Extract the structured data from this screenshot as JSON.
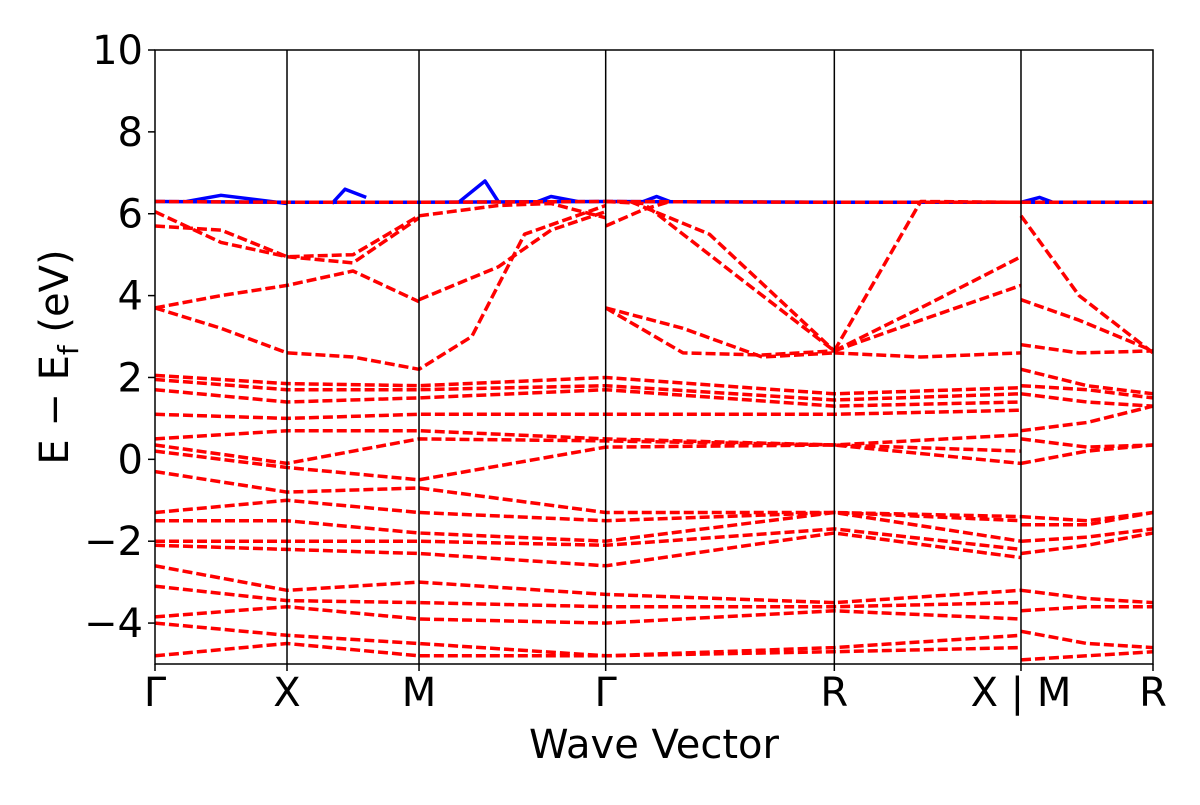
{
  "chart_data": {
    "type": "line",
    "title": "",
    "xlabel": "Wave Vector",
    "ylabel_main": "E − E",
    "ylabel_sub": "f",
    "ylabel_unit": " (eV)",
    "ylim": [
      -5,
      10
    ],
    "yticks": [
      -4,
      -2,
      0,
      2,
      4,
      6,
      8,
      10
    ],
    "ytick_labels": [
      "−4",
      "−2",
      "0",
      "2",
      "4",
      "6",
      "8",
      "10"
    ],
    "grid": false,
    "legend": "none",
    "kpath": [
      {
        "label": "Γ",
        "x": 0.0
      },
      {
        "label": "X",
        "x": 0.5
      },
      {
        "label": "M",
        "x": 1.0
      },
      {
        "label": "Γ",
        "x": 1.707
      },
      {
        "label": "R",
        "x": 2.573
      },
      {
        "label": "X | M",
        "x": 3.28
      },
      {
        "label": "R",
        "x": 3.78
      }
    ],
    "xlim": [
      0.0,
      3.78
    ],
    "break_at": 3.28,
    "series": [
      {
        "style": "solid",
        "color": "#0000ff",
        "bands": [
          {
            "x": [
              0,
              0.5,
              1.0,
              1.707,
              2.573,
              3.28
            ],
            "y": [
              6.3,
              6.28,
              6.28,
              6.3,
              6.28,
              6.28
            ]
          },
          {
            "x": [
              0.12,
              0.25,
              0.5
            ],
            "y": [
              6.3,
              6.45,
              6.25
            ]
          },
          {
            "x": [
              0.67,
              0.72,
              0.8
            ],
            "y": [
              6.25,
              6.6,
              6.4
            ]
          },
          {
            "x": [
              1.15,
              1.25,
              1.3
            ],
            "y": [
              6.28,
              6.8,
              6.3
            ]
          },
          {
            "x": [
              1.45,
              1.5,
              1.6
            ],
            "y": [
              6.3,
              6.42,
              6.3
            ]
          },
          {
            "x": [
              1.85,
              1.9,
              1.95
            ],
            "y": [
              6.3,
              6.42,
              6.3
            ]
          },
          {
            "x": [
              3.28,
              3.35,
              3.4
            ],
            "y": [
              6.28,
              6.4,
              6.28
            ]
          },
          {
            "x": [
              3.28,
              3.53,
              3.78
            ],
            "y": [
              6.28,
              6.28,
              6.28
            ]
          }
        ]
      },
      {
        "style": "dashed",
        "color": "#ff0000",
        "bands": [
          {
            "x": [
              0,
              0.5,
              1.0,
              1.707,
              2.573,
              3.28
            ],
            "y": [
              6.3,
              6.28,
              6.28,
              6.3,
              6.28,
              6.28
            ]
          },
          {
            "x": [
              3.28,
              3.53,
              3.78
            ],
            "y": [
              6.28,
              6.28,
              6.28
            ]
          },
          {
            "x": [
              0,
              0.25,
              0.5,
              0.75,
              1.0
            ],
            "y": [
              6.05,
              5.3,
              4.95,
              4.8,
              5.9
            ]
          },
          {
            "x": [
              0,
              0.25,
              0.5,
              0.75,
              1.0
            ],
            "y": [
              5.7,
              5.6,
              4.95,
              5.0,
              5.95
            ]
          },
          {
            "x": [
              1.0,
              1.3,
              1.5,
              1.707
            ],
            "y": [
              5.95,
              6.2,
              6.25,
              5.9
            ]
          },
          {
            "x": [
              1.0,
              1.3,
              1.5,
              1.707
            ],
            "y": [
              3.9,
              4.7,
              5.6,
              6.05
            ]
          },
          {
            "x": [
              1.707,
              1.85,
              1.95
            ],
            "y": [
              5.7,
              6.1,
              6.3
            ]
          },
          {
            "x": [
              0,
              0.25,
              0.5,
              0.75,
              1.0
            ],
            "y": [
              3.7,
              4.0,
              4.25,
              4.6,
              3.85
            ]
          },
          {
            "x": [
              0,
              0.25,
              0.5,
              0.75,
              1.0,
              1.2,
              1.4,
              1.707
            ],
            "y": [
              3.7,
              3.2,
              2.6,
              2.5,
              2.2,
              3.0,
              5.5,
              6.2
            ]
          },
          {
            "x": [
              1.707,
              2.0,
              2.3,
              2.573
            ],
            "y": [
              3.7,
              3.2,
              2.5,
              2.6
            ]
          },
          {
            "x": [
              1.707,
              2.0,
              2.3,
              2.573
            ],
            "y": [
              3.7,
              2.6,
              2.55,
              2.65
            ]
          },
          {
            "x": [
              1.8,
              2.1,
              2.573
            ],
            "y": [
              6.3,
              5.5,
              2.65
            ]
          },
          {
            "x": [
              1.707,
              1.85,
              2.2,
              2.573
            ],
            "y": [
              6.3,
              6.25,
              4.5,
              2.65
            ]
          },
          {
            "x": [
              2.573,
              2.9,
              3.28
            ],
            "y": [
              2.65,
              6.3,
              6.28
            ]
          },
          {
            "x": [
              2.573,
              2.9,
              3.28
            ],
            "y": [
              2.65,
              3.7,
              4.95
            ]
          },
          {
            "x": [
              2.573,
              2.9,
              3.28
            ],
            "y": [
              2.65,
              3.4,
              4.25
            ]
          },
          {
            "x": [
              2.573,
              2.9,
              3.28
            ],
            "y": [
              2.6,
              2.5,
              2.6
            ]
          },
          {
            "x": [
              3.28,
              3.5,
              3.78
            ],
            "y": [
              5.95,
              4.0,
              2.6
            ]
          },
          {
            "x": [
              3.28,
              3.5,
              3.78
            ],
            "y": [
              3.9,
              3.4,
              2.65
            ]
          },
          {
            "x": [
              3.28,
              3.5,
              3.78
            ],
            "y": [
              2.8,
              2.6,
              2.65
            ]
          },
          {
            "x": [
              0,
              0.5,
              1.0,
              1.707,
              2.573,
              3.28
            ],
            "y": [
              2.05,
              1.85,
              1.8,
              2.0,
              1.6,
              1.75
            ]
          },
          {
            "x": [
              0,
              0.5,
              1.0,
              1.707,
              2.573,
              3.28
            ],
            "y": [
              1.95,
              1.7,
              1.7,
              1.8,
              1.45,
              1.6
            ]
          },
          {
            "x": [
              0,
              0.5,
              1.0,
              1.707,
              2.573,
              3.28
            ],
            "y": [
              1.7,
              1.4,
              1.5,
              1.7,
              1.3,
              1.4
            ]
          },
          {
            "x": [
              0,
              0.5,
              1.0,
              1.707,
              2.573,
              3.28
            ],
            "y": [
              1.1,
              1.0,
              1.1,
              1.1,
              1.1,
              1.2
            ]
          },
          {
            "x": [
              0,
              0.5,
              1.0,
              1.707,
              2.573,
              3.28
            ],
            "y": [
              0.5,
              0.7,
              0.7,
              0.5,
              0.35,
              0.6
            ]
          },
          {
            "x": [
              0,
              0.5,
              1.0,
              1.707,
              2.573,
              3.28
            ],
            "y": [
              0.35,
              -0.1,
              0.5,
              0.45,
              0.35,
              0.2
            ]
          },
          {
            "x": [
              0,
              0.5,
              1.0,
              1.707,
              2.573,
              3.28
            ],
            "y": [
              0.2,
              -0.2,
              -0.5,
              0.3,
              0.35,
              -0.1
            ]
          },
          {
            "x": [
              0,
              0.5,
              1.0,
              1.707,
              2.573,
              3.28
            ],
            "y": [
              -0.3,
              -0.8,
              -0.7,
              -1.3,
              -1.3,
              -1.4
            ]
          },
          {
            "x": [
              0,
              0.5,
              1.0,
              1.707,
              2.573,
              3.28
            ],
            "y": [
              -1.3,
              -1.0,
              -1.3,
              -1.5,
              -1.3,
              -1.5
            ]
          },
          {
            "x": [
              0,
              0.5,
              1.0,
              1.707,
              2.573,
              3.28
            ],
            "y": [
              -1.5,
              -1.5,
              -1.8,
              -2.0,
              -1.3,
              -2.0
            ]
          },
          {
            "x": [
              0,
              0.5,
              1.0,
              1.707,
              2.573,
              3.28
            ],
            "y": [
              -2.0,
              -2.0,
              -2.0,
              -2.1,
              -1.7,
              -2.2
            ]
          },
          {
            "x": [
              0,
              0.5,
              1.0,
              1.707,
              2.573,
              3.28
            ],
            "y": [
              -2.1,
              -2.2,
              -2.3,
              -2.6,
              -1.8,
              -2.4
            ]
          },
          {
            "x": [
              0,
              0.5,
              1.0,
              1.707,
              2.573,
              3.28
            ],
            "y": [
              -2.6,
              -3.2,
              -3.0,
              -3.3,
              -3.5,
              -3.2
            ]
          },
          {
            "x": [
              0,
              0.5,
              1.0,
              1.707,
              2.573,
              3.28
            ],
            "y": [
              -3.1,
              -3.45,
              -3.5,
              -3.6,
              -3.6,
              -3.5
            ]
          },
          {
            "x": [
              0,
              0.5,
              1.0,
              1.707,
              2.573,
              3.28
            ],
            "y": [
              -3.85,
              -3.6,
              -3.9,
              -4.0,
              -3.7,
              -3.9
            ]
          },
          {
            "x": [
              0,
              0.5,
              1.0,
              1.707,
              2.573,
              3.28
            ],
            "y": [
              -4.0,
              -4.3,
              -4.5,
              -4.8,
              -4.6,
              -4.3
            ]
          },
          {
            "x": [
              0,
              0.5,
              1.0,
              1.707,
              2.573,
              3.28
            ],
            "y": [
              -4.8,
              -4.5,
              -4.8,
              -4.8,
              -4.7,
              -4.6
            ]
          },
          {
            "x": [
              3.28,
              3.53,
              3.78
            ],
            "y": [
              2.2,
              1.8,
              1.6
            ]
          },
          {
            "x": [
              3.28,
              3.53,
              3.78
            ],
            "y": [
              1.8,
              1.7,
              1.5
            ]
          },
          {
            "x": [
              3.28,
              3.53,
              3.78
            ],
            "y": [
              1.6,
              1.4,
              1.3
            ]
          },
          {
            "x": [
              3.28,
              3.53,
              3.78
            ],
            "y": [
              0.7,
              0.9,
              1.3
            ]
          },
          {
            "x": [
              3.28,
              3.53,
              3.78
            ],
            "y": [
              0.5,
              0.3,
              0.35
            ]
          },
          {
            "x": [
              3.28,
              3.53,
              3.78
            ],
            "y": [
              -0.1,
              0.2,
              0.35
            ]
          },
          {
            "x": [
              3.28,
              3.53,
              3.78
            ],
            "y": [
              -1.4,
              -1.5,
              -1.3
            ]
          },
          {
            "x": [
              3.28,
              3.53,
              3.78
            ],
            "y": [
              -1.6,
              -1.6,
              -1.3
            ]
          },
          {
            "x": [
              3.28,
              3.53,
              3.78
            ],
            "y": [
              -2.0,
              -1.9,
              -1.7
            ]
          },
          {
            "x": [
              3.28,
              3.53,
              3.78
            ],
            "y": [
              -2.3,
              -2.1,
              -1.8
            ]
          },
          {
            "x": [
              3.28,
              3.53,
              3.78
            ],
            "y": [
              -3.2,
              -3.4,
              -3.5
            ]
          },
          {
            "x": [
              3.28,
              3.53,
              3.78
            ],
            "y": [
              -3.7,
              -3.6,
              -3.6
            ]
          },
          {
            "x": [
              3.28,
              3.53,
              3.78
            ],
            "y": [
              -4.2,
              -4.5,
              -4.6
            ]
          },
          {
            "x": [
              3.28,
              3.53,
              3.78
            ],
            "y": [
              -4.9,
              -4.8,
              -4.7
            ]
          }
        ]
      }
    ]
  }
}
